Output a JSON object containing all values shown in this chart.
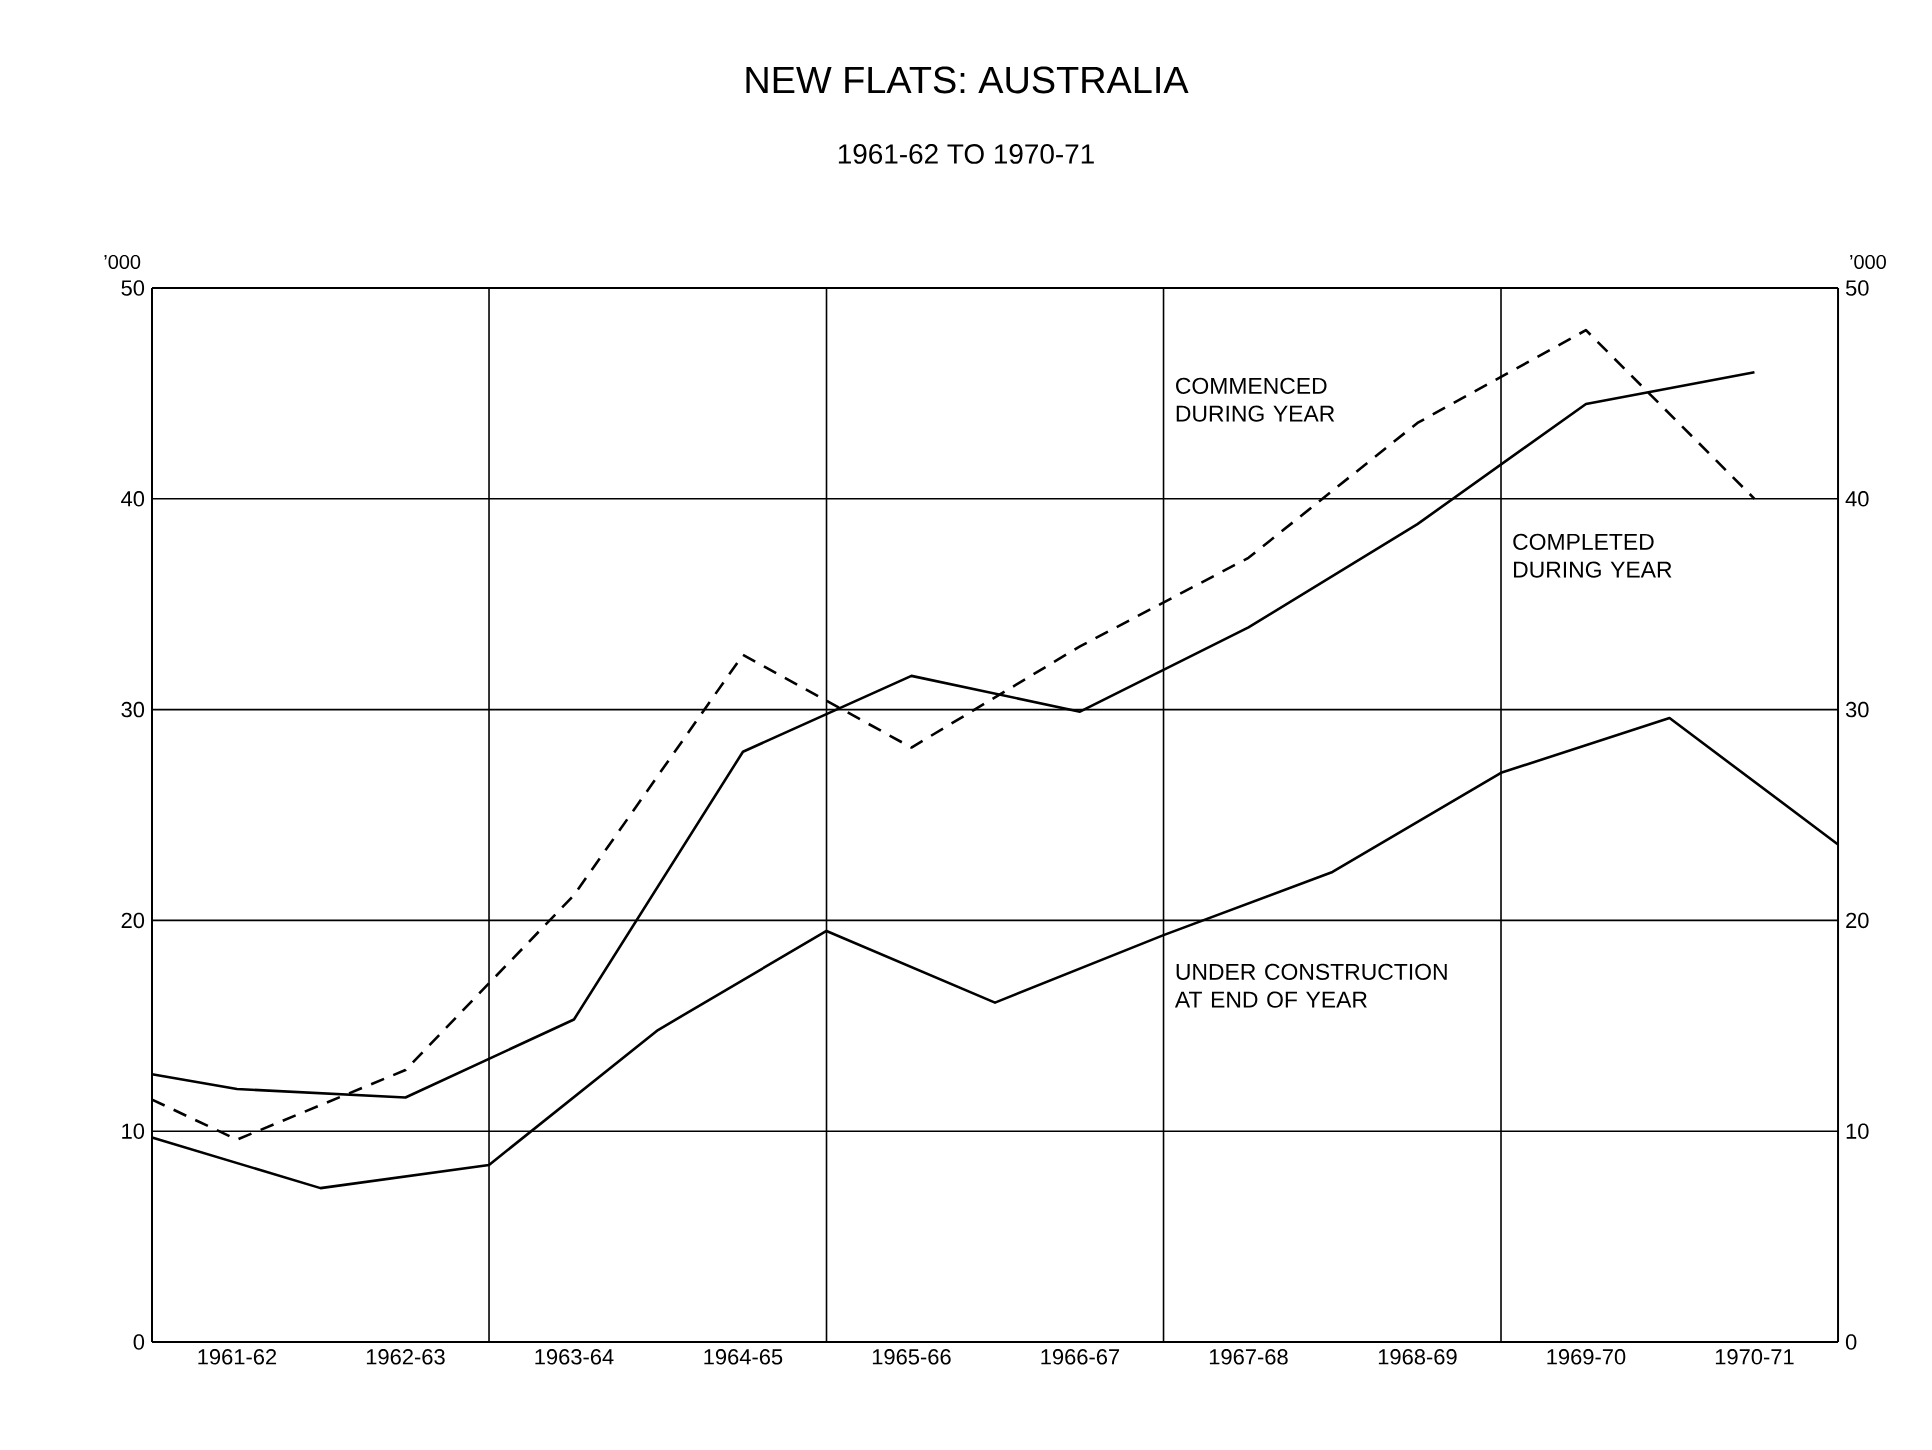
{
  "chart_data": {
    "type": "line",
    "title": "NEW FLATS: AUSTRALIA",
    "subtitle": "1961-62 TO 1970-71",
    "ylabel": "’000",
    "y2label": "’000",
    "xlim": [
      "1961-06-30",
      "1971-06-30"
    ],
    "xticks": [
      {
        "value": "1961-12-31",
        "label": "1961-62"
      },
      {
        "value": "1962-12-31",
        "label": "1962-63"
      },
      {
        "value": "1963-12-31",
        "label": "1963-64"
      },
      {
        "value": "1964-12-31",
        "label": "1964-65"
      },
      {
        "value": "1965-12-31",
        "label": "1965-66"
      },
      {
        "value": "1966-12-31",
        "label": "1966-67"
      },
      {
        "value": "1967-12-31",
        "label": "1967-68"
      },
      {
        "value": "1968-12-31",
        "label": "1968-69"
      },
      {
        "value": "1969-12-31",
        "label": "1969-70"
      },
      {
        "value": "1970-12-31",
        "label": "1970-71"
      }
    ],
    "ylim": [
      0,
      50
    ],
    "yticks": [
      0,
      10,
      20,
      30,
      40,
      50
    ],
    "y2lim": [
      0,
      50
    ],
    "y2ticks": [
      0,
      10,
      20,
      30,
      40,
      50
    ],
    "grid": "y",
    "ref_lines": [
      {
        "axis": "x",
        "value": "1963-06-30"
      },
      {
        "axis": "x",
        "value": "1965-06-30"
      },
      {
        "axis": "x",
        "value": "1967-06-30"
      },
      {
        "axis": "x",
        "value": "1969-06-30"
      }
    ],
    "series": [
      {
        "name": "COMMENCED DURING YEAR",
        "color": "#000000",
        "line_style": "dashed",
        "x": [
          "1961-06-30",
          "1961-12-31",
          "1962-12-31",
          "1963-12-31",
          "1964-12-31",
          "1965-12-31",
          "1966-12-31",
          "1967-12-31",
          "1968-12-31",
          "1969-12-31",
          "1970-12-31"
        ],
        "values": [
          11.5,
          9.6,
          12.9,
          21.2,
          32.6,
          28.2,
          33.0,
          37.2,
          43.6,
          48.0,
          40.0
        ]
      },
      {
        "name": "COMPLETED DURING YEAR",
        "color": "#000000",
        "line_style": "solid",
        "x": [
          "1961-06-30",
          "1961-12-31",
          "1962-12-31",
          "1963-12-31",
          "1964-12-31",
          "1965-12-31",
          "1966-12-31",
          "1967-12-31",
          "1968-12-31",
          "1969-12-31",
          "1970-12-31"
        ],
        "values": [
          12.7,
          12.0,
          11.6,
          15.3,
          28.0,
          31.6,
          29.9,
          33.9,
          38.8,
          44.5,
          46.0
        ]
      },
      {
        "name": "UNDER CONSTRUCTION AT END OF YEAR",
        "color": "#000000",
        "line_style": "solid",
        "x": [
          "1961-06-30",
          "1962-06-30",
          "1963-06-30",
          "1964-06-30",
          "1965-06-30",
          "1966-06-30",
          "1967-06-30",
          "1968-06-30",
          "1969-06-30",
          "1970-06-30",
          "1971-06-30"
        ],
        "values": [
          9.7,
          7.3,
          8.4,
          14.8,
          19.5,
          16.1,
          19.3,
          22.3,
          27.0,
          29.6,
          23.6
        ]
      }
    ]
  }
}
